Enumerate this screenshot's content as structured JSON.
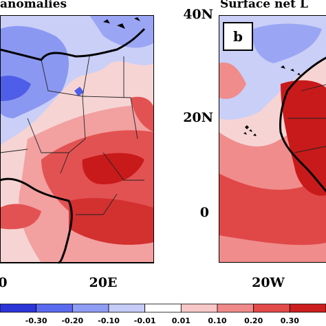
{
  "panels": [
    {
      "id": "a",
      "title_fragment": "anomalies"
    },
    {
      "id": "b",
      "title_fragment": "Surface net L",
      "letter": "b"
    }
  ],
  "axes": {
    "panel_a_x_ticks": [
      "0",
      "20E"
    ],
    "panel_b_x_ticks": [
      "20W"
    ],
    "panel_b_y_ticks": [
      "40N",
      "20N",
      "0"
    ]
  },
  "colorbar": {
    "labels": [
      "-0.30",
      "-0.20",
      "-0.10",
      "-0.01",
      "0.01",
      "0.10",
      "0.20",
      "0.30"
    ],
    "colors": [
      "#2b35d8",
      "#5a6bef",
      "#8f9df5",
      "#c6ccf8",
      "#ffffff",
      "#f8c8c8",
      "#f08a8a",
      "#e34a4a",
      "#cc1e1e"
    ]
  },
  "legend_colors": {
    "strong_neg": "#3340dc",
    "mid_neg": "#7a88f2",
    "weak_neg": "#c8cef8",
    "neutral": "#ffffff",
    "weak_pos": "#f9cfcf",
    "mid_pos": "#f08c8c",
    "strong_pos": "#e04848",
    "very_strong_pos": "#c81a1a"
  }
}
